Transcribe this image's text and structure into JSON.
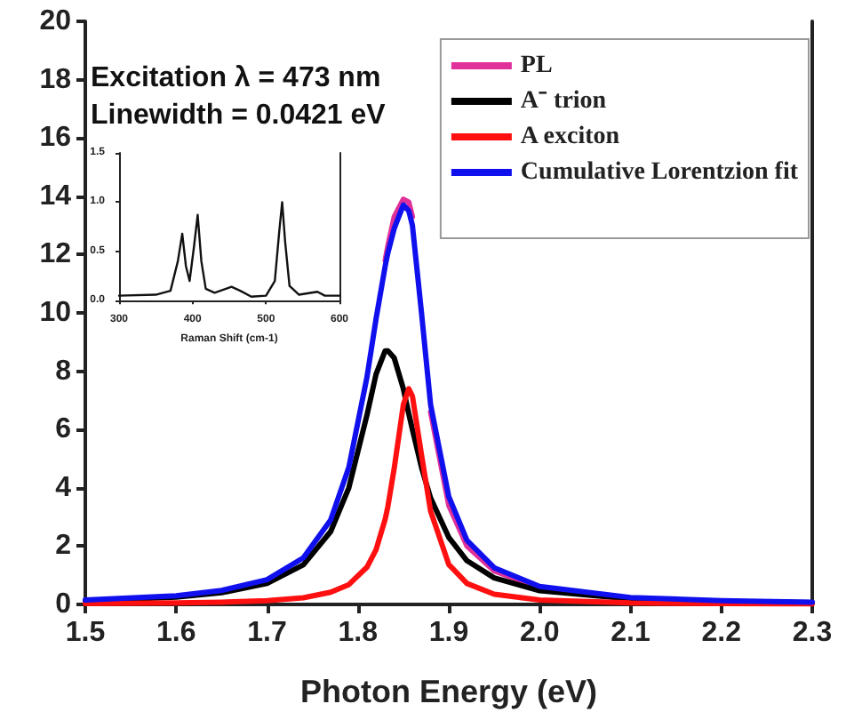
{
  "chart_data": [
    {
      "type": "line",
      "xlabel": "Photon Energy (eV)",
      "annotations": [
        "Excitation λ = 473 nm",
        "Linewidth = 0.0421 eV"
      ],
      "x": [
        1.5,
        1.6,
        1.65,
        1.7,
        1.74,
        1.77,
        1.79,
        1.81,
        1.82,
        1.83,
        1.833,
        1.84,
        1.85,
        1.856,
        1.86,
        1.87,
        1.88,
        1.9,
        1.92,
        1.95,
        2.0,
        2.1,
        2.2,
        2.3
      ],
      "series": [
        {
          "name": "PL",
          "color": "#e0309a",
          "values": [
            null,
            null,
            null,
            null,
            null,
            null,
            null,
            null,
            null,
            11.8,
            12.3,
            13.3,
            13.9,
            13.8,
            13.3,
            null,
            6.6,
            3.4,
            2.0,
            1.15,
            0.56,
            null,
            null,
            null
          ]
        },
        {
          "name": "A⁻ trion",
          "color": "#000000",
          "values": [
            0.12,
            0.25,
            0.4,
            0.72,
            1.36,
            2.5,
            4.0,
            6.5,
            7.9,
            8.7,
            8.7,
            8.45,
            7.4,
            6.54,
            6.0,
            4.7,
            3.65,
            2.3,
            1.5,
            0.91,
            0.47,
            0.19,
            0.1,
            0.06
          ]
        },
        {
          "name": "A exciton",
          "color": "#ff1010",
          "values": [
            0.03,
            0.05,
            0.08,
            0.13,
            0.23,
            0.42,
            0.68,
            1.28,
            1.88,
            2.92,
            3.36,
            4.68,
            6.85,
            7.4,
            7.14,
            5.13,
            3.2,
            1.37,
            0.72,
            0.35,
            0.15,
            0.05,
            0.03,
            0.02
          ]
        },
        {
          "name": "Cumulative Lorentzion fit",
          "color": "#1010ee",
          "values": [
            0.15,
            0.3,
            0.48,
            0.85,
            1.6,
            2.9,
            4.7,
            7.8,
            9.8,
            11.6,
            12.06,
            12.9,
            13.7,
            13.5,
            13.0,
            10.0,
            6.85,
            3.7,
            2.2,
            1.26,
            0.62,
            0.24,
            0.13,
            0.08
          ]
        }
      ],
      "xlim": [
        1.5,
        2.3
      ],
      "xticks": [
        1.5,
        1.6,
        1.7,
        1.8,
        1.9,
        {
          "value": 2,
          "label": "2.0"
        },
        2.1,
        2.2,
        2.3
      ],
      "ylim": [
        0,
        20
      ],
      "yticks": [
        0,
        2,
        4,
        6,
        8,
        10,
        12,
        14,
        16,
        18,
        20
      ],
      "legend": "top right",
      "grid": false,
      "marker": "none",
      "line_style": "solid"
    },
    {
      "type": "line",
      "xlabel": "Raman Shift (cm-1)",
      "x": [
        300,
        350,
        370,
        380,
        386,
        391,
        396,
        402,
        407,
        412,
        418,
        430,
        453,
        465,
        480,
        500,
        512,
        518,
        522,
        526,
        532,
        545,
        570,
        580,
        600
      ],
      "series": [
        {
          "color": "#111111",
          "values": [
            0.05,
            0.06,
            0.1,
            0.4,
            0.68,
            0.35,
            0.2,
            0.55,
            0.87,
            0.4,
            0.12,
            0.08,
            0.14,
            0.1,
            0.04,
            0.05,
            0.2,
            0.7,
            1.0,
            0.6,
            0.15,
            0.06,
            0.09,
            0.05,
            0.05
          ]
        }
      ],
      "xlim": [
        300,
        600
      ],
      "xticks": [
        300,
        400,
        500,
        600
      ],
      "ylim": [
        0,
        1.5
      ],
      "yticks": [
        {
          "value": 0,
          "label": "0.0"
        },
        {
          "value": 0.5,
          "label": "0.5"
        },
        {
          "value": 1,
          "label": "1.0"
        },
        {
          "value": 1.5,
          "label": "1.5"
        }
      ],
      "legend": false,
      "grid": false,
      "marker": "none",
      "line_style": "solid"
    }
  ]
}
